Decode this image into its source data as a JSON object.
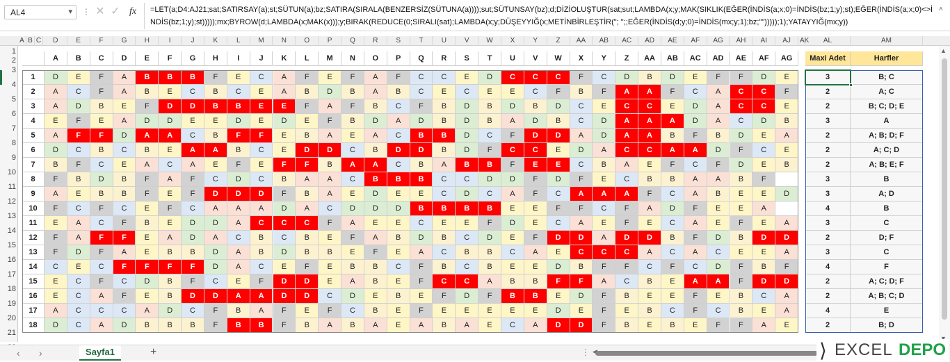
{
  "name_box": "AL4",
  "formula_bar": {
    "fx": "fx",
    "formula": "=LET(a;D4:AJ21;sat;SATIRSAY(a);st;SÜTUN(a);bz;SATIRA(SIRALA(BENZERSİZ(SÜTUNA(a))));sut;SÜTUNSAY(bz);d;DİZİOLUŞTUR(sat;sut;LAMBDA(x;y;MAK(SIKLIK(EĞER(İNDİS(a;x;0)=İNDİS(bz;1;y);st);EĞER(İNDİS(a;x;0)<>İNDİS(bz;1;y);st)))));mx;BYROW(d;LAMBDA(x;MAK(x)));y;BIRAK(REDUCE(0;SIRALI(sat);LAMBDA(x;y;DÜŞEYYIĞ(x;METİNBİRLEŞTİR(\"; \";;EĞER(İNDİS(d;y;0)=İNDİS(mx;y;1);bz;\"\")))));1);YATAYYIĞ(mx;y))"
  },
  "column_letters": [
    "A",
    "B",
    "C",
    "D",
    "E",
    "F",
    "G",
    "H",
    "I",
    "J",
    "K",
    "L",
    "M",
    "N",
    "O",
    "P",
    "Q",
    "R",
    "S",
    "T",
    "U",
    "V",
    "W",
    "X",
    "Y",
    "Z",
    "AA",
    "AB",
    "AC",
    "AD",
    "AE",
    "AF",
    "AG",
    "AH",
    "AI",
    "AJ",
    "AK",
    "AL",
    "AM"
  ],
  "row_numbers": [
    "1",
    "2",
    "3",
    "4",
    "5",
    "6",
    "7",
    "8",
    "9",
    "10",
    "11",
    "12",
    "13",
    "14",
    "15",
    "16",
    "17",
    "18",
    "19",
    "20",
    "21",
    "22"
  ],
  "table": {
    "headers": [
      "A",
      "B",
      "C",
      "D",
      "E",
      "F",
      "G",
      "H",
      "I",
      "J",
      "K",
      "L",
      "M",
      "N",
      "O",
      "P",
      "Q",
      "R",
      "S",
      "T",
      "U",
      "V",
      "W",
      "X",
      "Y",
      "Z",
      "AA",
      "AB",
      "AC",
      "AD",
      "AE",
      "AF",
      "AG"
    ],
    "result_headers": [
      "Maxi Adet",
      "Harfler"
    ],
    "rows": [
      {
        "label": "1",
        "cells": "DEFABBBFECAFEFAFCCEDCCCFCDBDEFFDE",
        "max": "3",
        "letters": "B; C"
      },
      {
        "label": "2",
        "cells": "ACFABECBCEABDBABCECEECFBFAAFCACCFE",
        "max": "2",
        "letters": "A; C"
      },
      {
        "label": "3",
        "cells": "ADBEFDDBBEEFAFBCFBDBDBDCECCEDACCE",
        "max": "2",
        "letters": "B; C; D; E"
      },
      {
        "label": "4",
        "cells": "EFEADDEEDEDEFBDADBDBADBCDAAADACDB",
        "max": "3",
        "letters": "A"
      },
      {
        "label": "5",
        "cells": "AFFDAACBFFEBAEACBBDCFDDADAABFBDEA",
        "max": "2",
        "letters": "A; B; D; F"
      },
      {
        "label": "6",
        "cells": "DCBCBEAABCEDDCBDDBDFCCEDACCAADFCE",
        "max": "2",
        "letters": "A; C; D"
      },
      {
        "label": "7",
        "cells": "BFCEACAEFEFFBAACBABBFEECBAEFCFDEB",
        "max": "2",
        "letters": "A; B; E; F"
      },
      {
        "label": "8",
        "cells": "FBDBFAFCDCBAACBBBCCDDFDFECBBAABF",
        "max": "3",
        "letters": "B"
      },
      {
        "label": "9",
        "cells": "AEBBFEFDDDFBAEDEECDCAFCAAAFCABEED",
        "max": "3",
        "letters": "A; D"
      },
      {
        "label": "10",
        "cells": "FCFCEFCAAADACDDDBBBBEEFFCFADFEEA",
        "max": "4",
        "letters": "B"
      },
      {
        "label": "11",
        "cells": "EACFBEDDACCCFAEECEEFDECAEFECAEFEA",
        "max": "3",
        "letters": "C"
      },
      {
        "label": "12",
        "cells": "FAFFEADACBCBEFABDBCDEFDDADDBFDBDDA",
        "max": "2",
        "letters": "D; F"
      },
      {
        "label": "13",
        "cells": "FDFAEBBDABDBBEFEACBBCAECCCACACEEA",
        "max": "3",
        "letters": "C"
      },
      {
        "label": "14",
        "cells": "CECFFFFDACEFEBBCFBCBEEDBFFCFCDFBF",
        "max": "4",
        "letters": "F"
      },
      {
        "label": "15",
        "cells": "ECFCDBFCEFDDEABEFCCABBFFACBEAAFDD",
        "max": "2",
        "letters": "A; C; D; F"
      },
      {
        "label": "16",
        "cells": "ECAFEBDDAADDCDEBEFDFBBEDFBEEFEBCA",
        "max": "2",
        "letters": "A; B; C; D"
      },
      {
        "label": "17",
        "cells": "ACCCADCFBAFEFCBEFEEEEEDEFEBCFCBEA",
        "max": "4",
        "letters": "E"
      },
      {
        "label": "18",
        "cells": "DCADBBBFBBFBABAEABAECADDFBEBEFFAE",
        "max": "2",
        "letters": "B; D"
      }
    ]
  },
  "colors": {
    "A": "#fbe0d6",
    "B": "#fdf2d0",
    "C": "#dde8f6",
    "D": "#dbeed3",
    "E": "#fef6c6",
    "F": "#d2d2d2",
    "dup": "#ff0000",
    "header_result": "#ffe699",
    "select": "#217346"
  },
  "sheet_tabs": [
    {
      "label": "Sayfa1",
      "active": true
    }
  ],
  "logo_text": {
    "left": "EXCEL",
    "right": "DEPO"
  }
}
